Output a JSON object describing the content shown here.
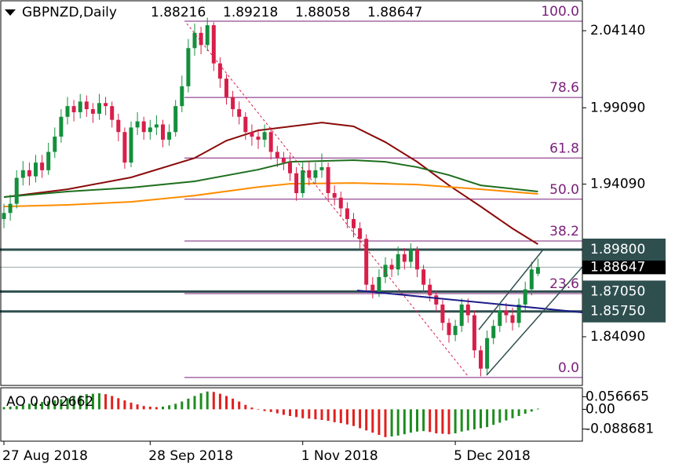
{
  "chart_data": {
    "type": "candlestick",
    "title": "GBPNZD,Daily",
    "header_values": [
      1.88216,
      1.89218,
      1.88058,
      1.88647
    ],
    "up_color": "#148f3c",
    "down_color": "#d81e4a",
    "open": [
      1.918,
      1.922,
      1.928,
      1.945,
      1.95,
      1.946,
      1.955,
      1.95,
      1.962,
      1.972,
      1.985,
      1.992,
      1.988,
      1.995,
      1.99,
      1.987,
      1.994,
      1.992,
      1.983,
      1.975,
      1.955,
      1.978,
      1.982,
      1.975,
      1.978,
      1.98,
      1.97,
      1.975,
      1.992,
      2.005,
      2.03,
      2.04,
      2.032,
      2.045,
      2.02,
      2.01,
      1.998,
      1.99,
      1.985,
      1.975,
      1.972,
      1.97,
      1.975,
      1.962,
      1.958,
      1.955,
      1.948,
      1.935,
      1.95,
      1.945,
      1.95,
      1.952,
      1.935,
      1.932,
      1.925,
      1.918,
      1.912,
      1.905,
      1.875,
      1.87,
      1.88,
      1.888,
      1.885,
      1.895,
      1.89,
      1.898,
      1.885,
      1.875,
      1.868,
      1.862,
      1.85,
      1.842,
      1.848,
      1.862,
      1.855,
      1.832,
      1.82,
      1.84,
      1.848,
      1.858,
      1.855,
      1.85,
      1.862,
      1.872,
      1.88216
    ],
    "high": [
      1.928,
      1.934,
      1.95,
      1.956,
      1.955,
      1.96,
      1.96,
      1.968,
      1.978,
      1.99,
      1.998,
      1.996,
      2.0,
      1.999,
      1.994,
      2.0,
      1.998,
      1.995,
      1.987,
      1.978,
      1.982,
      1.988,
      1.985,
      1.983,
      1.986,
      1.983,
      1.98,
      1.996,
      2.012,
      2.036,
      2.046,
      2.044,
      2.05,
      2.047,
      2.024,
      2.013,
      2.002,
      1.995,
      1.988,
      1.98,
      1.977,
      1.98,
      1.978,
      1.966,
      1.962,
      1.96,
      1.952,
      1.955,
      1.956,
      1.955,
      1.961,
      1.955,
      1.94,
      1.936,
      1.929,
      1.922,
      1.916,
      1.908,
      1.88,
      1.885,
      1.893,
      1.892,
      1.9,
      1.899,
      1.902,
      1.9,
      1.888,
      1.879,
      1.871,
      1.865,
      1.853,
      1.852,
      1.866,
      1.866,
      1.858,
      1.835,
      1.845,
      1.852,
      1.862,
      1.863,
      1.86,
      1.866,
      1.877,
      1.89,
      1.89218
    ],
    "low": [
      1.912,
      1.917,
      1.925,
      1.94,
      1.94,
      1.942,
      1.945,
      1.947,
      1.958,
      1.968,
      1.98,
      1.982,
      1.984,
      1.985,
      1.981,
      1.983,
      1.986,
      1.978,
      1.969,
      1.951,
      1.952,
      1.973,
      1.97,
      1.97,
      1.973,
      1.965,
      1.966,
      1.972,
      1.988,
      2.001,
      2.025,
      2.026,
      2.028,
      2.015,
      2.004,
      1.993,
      1.985,
      1.98,
      1.97,
      1.966,
      1.964,
      1.965,
      1.957,
      1.952,
      1.95,
      1.943,
      1.93,
      1.932,
      1.94,
      1.941,
      1.945,
      1.93,
      1.927,
      1.92,
      1.912,
      1.906,
      1.898,
      1.87,
      1.866,
      1.867,
      1.876,
      1.88,
      1.881,
      1.885,
      1.886,
      1.88,
      1.87,
      1.864,
      1.857,
      1.845,
      1.837,
      1.838,
      1.844,
      1.85,
      1.827,
      1.815,
      1.816,
      1.836,
      1.844,
      1.85,
      1.845,
      1.847,
      1.858,
      1.868,
      1.88058
    ],
    "close": [
      1.922,
      1.928,
      1.945,
      1.95,
      1.946,
      1.955,
      1.95,
      1.962,
      1.972,
      1.985,
      1.992,
      1.988,
      1.995,
      1.99,
      1.987,
      1.994,
      1.992,
      1.983,
      1.975,
      1.955,
      1.978,
      1.982,
      1.975,
      1.978,
      1.98,
      1.97,
      1.975,
      1.992,
      2.005,
      2.03,
      2.04,
      2.032,
      2.045,
      2.02,
      2.01,
      1.998,
      1.99,
      1.985,
      1.975,
      1.972,
      1.97,
      1.975,
      1.962,
      1.958,
      1.955,
      1.948,
      1.935,
      1.95,
      1.945,
      1.95,
      1.952,
      1.935,
      1.932,
      1.925,
      1.918,
      1.912,
      1.905,
      1.875,
      1.87,
      1.88,
      1.888,
      1.885,
      1.895,
      1.89,
      1.898,
      1.885,
      1.875,
      1.868,
      1.862,
      1.85,
      1.842,
      1.848,
      1.862,
      1.855,
      1.832,
      1.82,
      1.84,
      1.848,
      1.858,
      1.855,
      1.85,
      1.862,
      1.872,
      1.885,
      1.88647
    ],
    "ylim": [
      1.809,
      2.061
    ],
    "yticks": [
      {
        "value": 2.0414,
        "label": "2.04140"
      },
      {
        "value": 1.9909,
        "label": "1.99090"
      },
      {
        "value": 1.9409,
        "label": "1.94090"
      },
      {
        "value": 1.8409,
        "label": "1.84090"
      }
    ],
    "ma": [
      {
        "color": "#8b0a0a",
        "x": [
          0,
          10,
          20,
          30,
          35,
          40,
          50,
          55,
          60,
          65,
          70,
          75,
          80,
          84
        ],
        "values": [
          1.9324,
          1.9375,
          1.9453,
          1.958,
          1.9694,
          1.9761,
          1.9812,
          1.9787,
          1.9684,
          1.9555,
          1.9401,
          1.9262,
          1.9118,
          1.9015
        ]
      },
      {
        "color": "#1e6e1e",
        "x": [
          0,
          10,
          20,
          30,
          40,
          45,
          55,
          60,
          65,
          70,
          75,
          84
        ],
        "values": [
          1.9324,
          1.936,
          1.9386,
          1.9427,
          1.9504,
          1.9555,
          1.9566,
          1.9555,
          1.952,
          1.9468,
          1.9401,
          1.936
        ]
      },
      {
        "color": "#ff8c00",
        "x": [
          0,
          10,
          20,
          30,
          40,
          45,
          55,
          65,
          75,
          84
        ],
        "values": [
          1.9262,
          1.9273,
          1.9293,
          1.9334,
          1.939,
          1.9411,
          1.9416,
          1.9406,
          1.9375,
          1.9345
        ]
      }
    ],
    "fib": [
      {
        "label": "100.0",
        "value": 2.0476
      },
      {
        "label": "78.6",
        "value": 1.9977
      },
      {
        "label": "61.8",
        "value": 1.958
      },
      {
        "label": "50.0",
        "value": 1.931
      },
      {
        "label": "38.2",
        "value": 1.9036
      },
      {
        "label": "23.6",
        "value": 1.8692
      },
      {
        "label": "0.0",
        "value": 1.8142
      }
    ],
    "levels": [
      {
        "value": 1.898,
        "label": "1.89800"
      },
      {
        "value": 1.8705,
        "label": "1.87050"
      },
      {
        "value": 1.8575,
        "label": "1.85750"
      }
    ],
    "current_price": 1.88647,
    "date_labels": [
      {
        "index": 0,
        "label": "27 Aug 2018"
      },
      {
        "index": 23,
        "label": "28 Sep 2018"
      },
      {
        "index": 47,
        "label": "1 Nov 2018"
      },
      {
        "index": 71,
        "label": "5 Dec 2018"
      }
    ],
    "ao": {
      "label": "AO 0.002662",
      "up_color": "#1e8c1e",
      "down_color": "#e0201e",
      "ylim": [
        -0.1432,
        0.0967
      ],
      "yticks": [
        0.056665,
        {
          "value": 0,
          "label": "0.00"
        },
        -0.088681
      ],
      "values": [
        0.01,
        0.012,
        0.015,
        0.02,
        0.025,
        0.03,
        0.033,
        0.036,
        0.04,
        0.045,
        0.05,
        0.055,
        0.062,
        0.068,
        0.07,
        0.072,
        0.068,
        0.06,
        0.05,
        0.04,
        0.03,
        0.022,
        0.015,
        0.012,
        0.01,
        0.012,
        0.018,
        0.025,
        0.035,
        0.048,
        0.06,
        0.072,
        0.08,
        0.078,
        0.07,
        0.06,
        0.048,
        0.035,
        0.02,
        0.008,
        -0.002,
        -0.008,
        -0.012,
        -0.018,
        -0.025,
        -0.03,
        -0.035,
        -0.04,
        -0.042,
        -0.045,
        -0.048,
        -0.052,
        -0.058,
        -0.062,
        -0.068,
        -0.075,
        -0.085,
        -0.095,
        -0.105,
        -0.115,
        -0.125,
        -0.122,
        -0.118,
        -0.112,
        -0.105,
        -0.1,
        -0.098,
        -0.102,
        -0.108,
        -0.11,
        -0.112,
        -0.108,
        -0.1,
        -0.095,
        -0.09,
        -0.085,
        -0.08,
        -0.07,
        -0.06,
        -0.05,
        -0.04,
        -0.03,
        -0.02,
        -0.01,
        0.003
      ]
    }
  }
}
